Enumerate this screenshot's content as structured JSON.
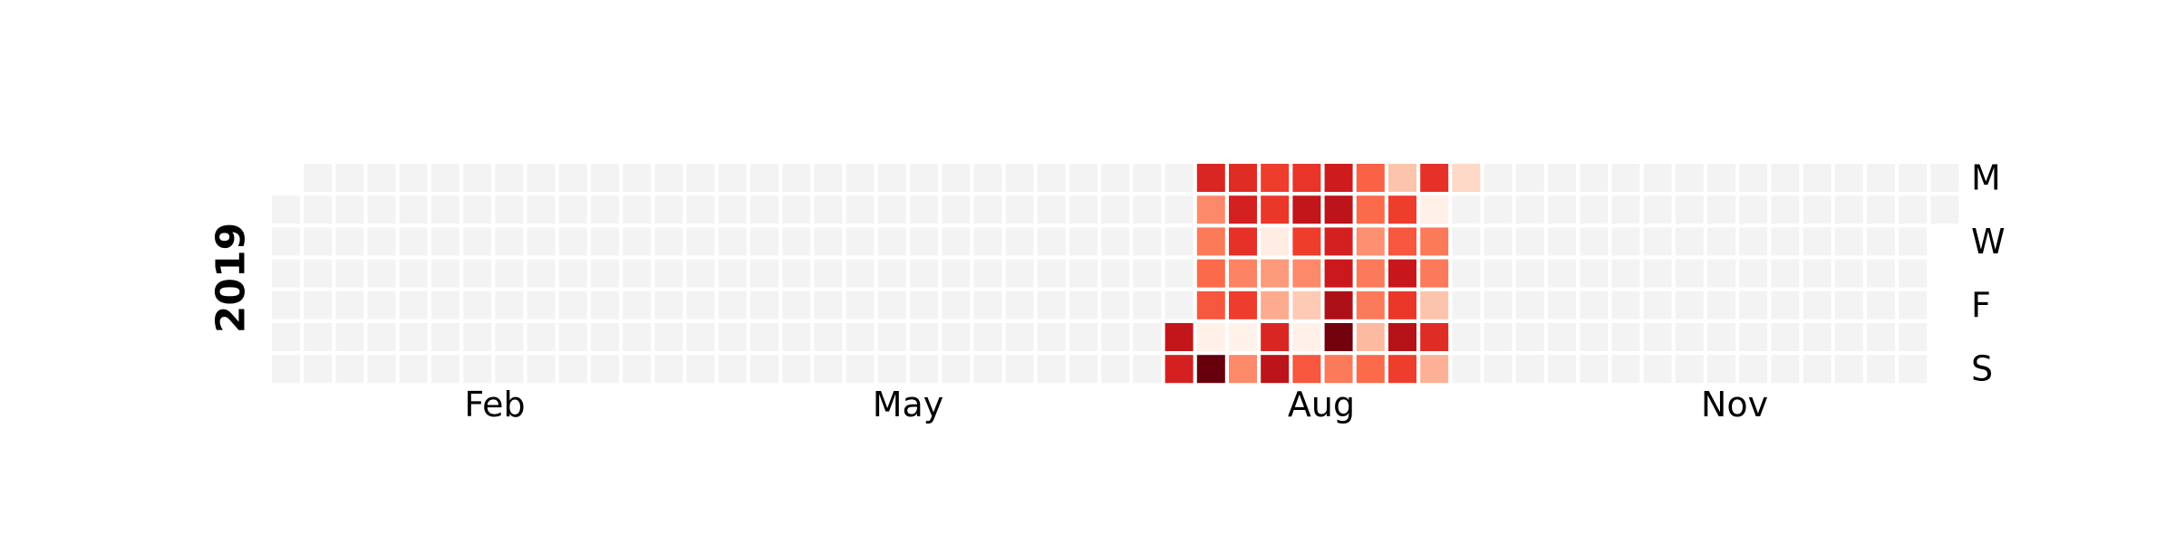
{
  "chart_data": {
    "type": "heatmap",
    "year": "2019",
    "month_labels": [
      "Feb",
      "May",
      "Aug",
      "Nov"
    ],
    "day_labels": [
      "M",
      "W",
      "F",
      "S"
    ],
    "first_day_of_year": "Tuesday",
    "colormap": "Reds",
    "empty_color": "#f3f3f3",
    "legend": "none",
    "scale": "relative intensity 0-1 (no colorbar shown)",
    "active_weeks": [
      {
        "week": 28,
        "mon": null,
        "tue": null,
        "wed": null,
        "thu": null,
        "fri": null,
        "sat": 0.78,
        "sun": 0.72
      },
      {
        "week": 29,
        "mon": 0.7,
        "tue": 0.4,
        "wed": 0.45,
        "thu": 0.5,
        "fri": 0.55,
        "sat": 0.03,
        "sun": 1.0
      },
      {
        "week": 30,
        "mon": 0.68,
        "tue": 0.72,
        "wed": 0.66,
        "thu": 0.42,
        "fri": 0.62,
        "sat": 0.02,
        "sun": 0.4
      },
      {
        "week": 31,
        "mon": 0.62,
        "tue": 0.64,
        "wed": 0.05,
        "thu": 0.35,
        "fri": 0.3,
        "sat": 0.7,
        "sun": 0.8
      },
      {
        "week": 32,
        "mon": 0.65,
        "tue": 0.78,
        "wed": 0.62,
        "thu": 0.4,
        "fri": 0.2,
        "sat": 0.03,
        "sun": 0.55
      },
      {
        "week": 33,
        "mon": 0.74,
        "tue": 0.8,
        "wed": 0.72,
        "thu": 0.75,
        "fri": 0.85,
        "sat": 0.98,
        "sun": 0.45
      },
      {
        "week": 34,
        "mon": 0.52,
        "tue": 0.5,
        "wed": 0.38,
        "thu": 0.45,
        "fri": 0.45,
        "sat": 0.25,
        "sun": 0.5
      },
      {
        "week": 35,
        "mon": 0.22,
        "tue": 0.62,
        "wed": 0.55,
        "thu": 0.76,
        "fri": 0.64,
        "sat": 0.82,
        "sun": 0.62
      },
      {
        "week": 36,
        "mon": 0.66,
        "tue": 0.03,
        "wed": 0.45,
        "thu": 0.45,
        "fri": 0.22,
        "sat": 0.68,
        "sun": 0.28
      },
      {
        "week": 37,
        "mon": 0.15,
        "tue": null,
        "wed": null,
        "thu": null,
        "fri": null,
        "sat": null,
        "sun": null
      }
    ]
  }
}
